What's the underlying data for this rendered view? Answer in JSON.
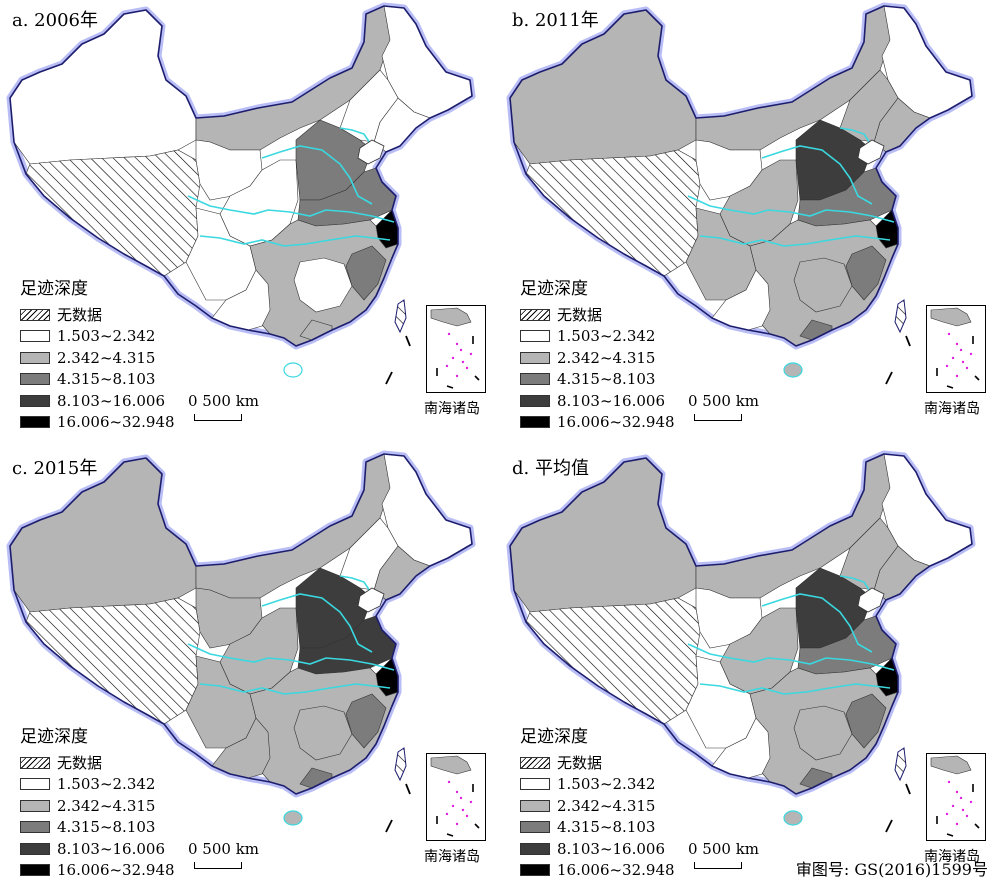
{
  "panels": [
    {
      "title": "a. 2006年"
    },
    {
      "title": "b. 2011年"
    },
    {
      "title": "c. 2015年"
    },
    {
      "title": "d. 平均值"
    }
  ],
  "legend": {
    "title": "足迹深度",
    "items": [
      {
        "label": "无数据",
        "fill": "hatch"
      },
      {
        "label": "1.503~2.342",
        "fill": "#ffffff"
      },
      {
        "label": "2.342~4.315",
        "fill": "#b5b5b5"
      },
      {
        "label": "4.315~8.103",
        "fill": "#7c7c7c"
      },
      {
        "label": "8.103~16.006",
        "fill": "#3d3d3d"
      },
      {
        "label": "16.006~32.948",
        "fill": "#000000"
      }
    ]
  },
  "scale_bar": {
    "label": "0   500 km"
  },
  "inset_label": "南海诸岛",
  "footer": "审图号: GS(2016)1599号",
  "colors": {
    "river": "#3ad8e0",
    "coast_glow": "#b9bdf5",
    "border": "#333333",
    "inset_islands": "#e020e0"
  }
}
